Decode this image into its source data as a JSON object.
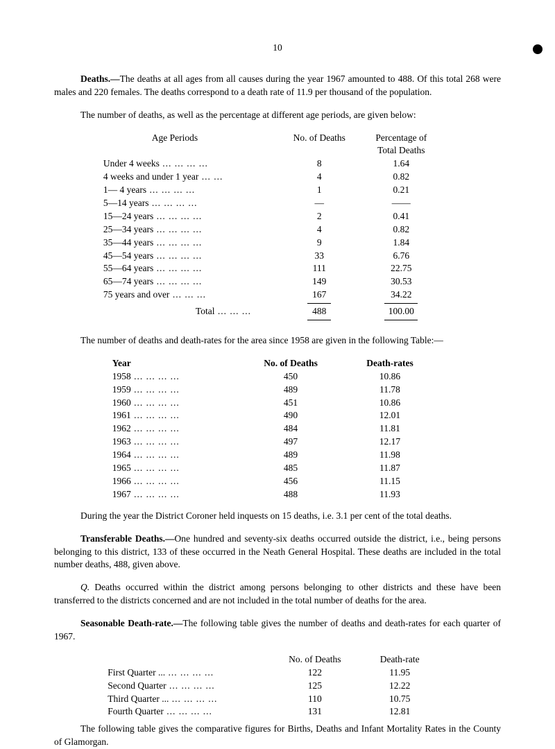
{
  "page_number": "10",
  "para_deaths": {
    "label": "Deaths.—",
    "text": "The deaths at all ages from all causes during the year 1967 amounted to 488. Of this total 268 were males and 220 females. The deaths correspond to a death rate of 11.9 per thousand of the population."
  },
  "para_number_deaths": "The number of deaths, as well as the percentage at different age periods, are given below:",
  "age_table": {
    "headers": {
      "col1": "Age Periods",
      "col2": "No. of Deaths",
      "col3": "Percentage of",
      "col3b": "Total Deaths"
    },
    "rows": [
      {
        "label": "Under 4 weeks",
        "deaths": "8",
        "pct": "1.64"
      },
      {
        "label": "4 weeks and under 1 year",
        "deaths": "4",
        "pct": "0.82"
      },
      {
        "label": "1— 4 years",
        "deaths": "1",
        "pct": "0.21"
      },
      {
        "label": "5—14 years",
        "deaths": "—",
        "pct": "——"
      },
      {
        "label": "15—24 years",
        "deaths": "2",
        "pct": "0.41"
      },
      {
        "label": "25—34 years",
        "deaths": "4",
        "pct": "0.82"
      },
      {
        "label": "35—44 years",
        "deaths": "9",
        "pct": "1.84"
      },
      {
        "label": "45—54 years",
        "deaths": "33",
        "pct": "6.76"
      },
      {
        "label": "55—64 years",
        "deaths": "111",
        "pct": "22.75"
      },
      {
        "label": "65—74 years",
        "deaths": "149",
        "pct": "30.53"
      },
      {
        "label": "75 years and over",
        "deaths": "167",
        "pct": "34.22"
      }
    ],
    "total": {
      "label": "Total",
      "deaths": "488",
      "pct": "100.00"
    }
  },
  "para_year_intro": "The number of deaths and death-rates for the area since 1958 are given in the following Table:—",
  "year_table": {
    "headers": {
      "c1": "Year",
      "c2": "No. of Deaths",
      "c3": "Death-rates"
    },
    "rows": [
      {
        "year": "1958",
        "n": "450",
        "r": "10.86"
      },
      {
        "year": "1959",
        "n": "489",
        "r": "11.78"
      },
      {
        "year": "1960",
        "n": "451",
        "r": "10.86"
      },
      {
        "year": "1961",
        "n": "490",
        "r": "12.01"
      },
      {
        "year": "1962",
        "n": "484",
        "r": "11.81"
      },
      {
        "year": "1963",
        "n": "497",
        "r": "12.17"
      },
      {
        "year": "1964",
        "n": "489",
        "r": "11.98"
      },
      {
        "year": "1965",
        "n": "485",
        "r": "11.87"
      },
      {
        "year": "1966",
        "n": "456",
        "r": "11.15"
      },
      {
        "year": "1967",
        "n": "488",
        "r": "11.93"
      }
    ]
  },
  "para_coroner": "During the year the District Coroner held inquests on 15 deaths, i.e. 3.1 per cent of the total deaths.",
  "para_transferable": {
    "label": "Transferable Deaths.—",
    "text": "One hundred and seventy-six deaths occurred outside the district, i.e., being persons belonging to this district, 133 of these occurred in the Neath General Hospital. These deaths are included in the total number deaths, 488, given above."
  },
  "para_other_districts": {
    "prefix": "Q.",
    "text": "Deaths occurred within the district among persons belonging to other districts and these have been transferred to the districts concerned and are not included in the total number of deaths for the area."
  },
  "para_seasonable": {
    "label": "Seasonable Death-rate.—",
    "text": "The following table gives the number of deaths and death-rates for each quarter of 1967."
  },
  "quarter_table": {
    "headers": {
      "c2": "No. of Deaths",
      "c3": "Death-rate"
    },
    "rows": [
      {
        "label": "First  Quarter",
        "n": "122",
        "r": "11.95"
      },
      {
        "label": "Second Quarter",
        "n": "125",
        "r": "12.22"
      },
      {
        "label": "Third  Quarter",
        "n": "110",
        "r": "10.75"
      },
      {
        "label": "Fourth Quarter",
        "n": "131",
        "r": "12.81"
      }
    ]
  },
  "para_final": "The following table gives the comparative figures for Births, Deaths and Infant Mortality Rates in the County of Glamorgan."
}
